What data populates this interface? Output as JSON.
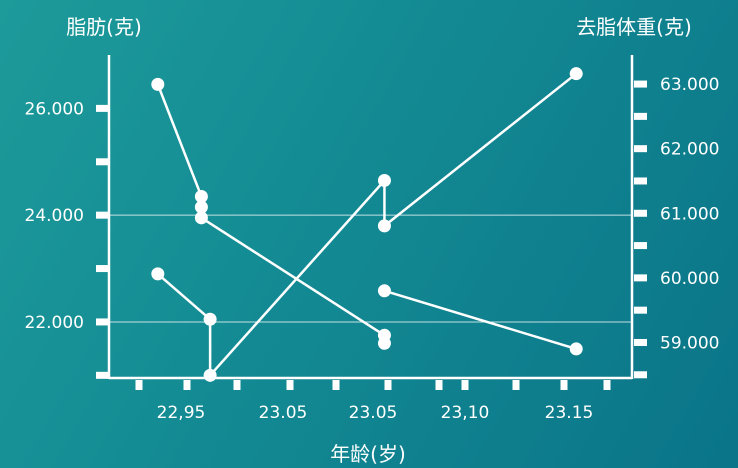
{
  "chart_data": {
    "type": "line",
    "title": "",
    "y_left_label": "脂肪(克)",
    "y_right_label": "去脂体重(克)",
    "xlabel": "年龄(岁)",
    "x_tick_labels": [
      "22,95",
      "23.05",
      "23.05",
      "23,10",
      "23.15"
    ],
    "y_left_ticks": [
      "26.000",
      "24.000",
      "22.000"
    ],
    "y_right_ticks": [
      "63.000",
      "62.000",
      "61.000",
      "60.000",
      "59.000"
    ],
    "ylim_left": [
      20.95,
      27.0
    ],
    "ylim_right": [
      58.45,
      63.45
    ],
    "grid": "horizontal",
    "series": [
      {
        "axis": "left",
        "points": [
          {
            "x": 22.93,
            "y": 26.45
          },
          {
            "x": 22.955,
            "y": 24.35
          },
          {
            "x": 22.955,
            "y": 24.15
          },
          {
            "x": 22.955,
            "y": 23.95
          },
          {
            "x": 23.06,
            "y": 21.75
          },
          {
            "x": 23.06,
            "y": 21.6
          }
        ]
      },
      {
        "axis": "left",
        "points": [
          {
            "x": 22.93,
            "y": 22.9
          },
          {
            "x": 22.96,
            "y": 22.05
          },
          {
            "x": 22.96,
            "y": 21.0
          },
          {
            "x": 23.06,
            "y": 24.65
          },
          {
            "x": 23.06,
            "y": 23.8
          },
          {
            "x": 23.17,
            "y": 26.65
          }
        ]
      },
      {
        "axis": "right",
        "points": [
          {
            "x": 23.06,
            "y": 59.8
          },
          {
            "x": 23.17,
            "y": 58.9
          }
        ]
      }
    ]
  }
}
